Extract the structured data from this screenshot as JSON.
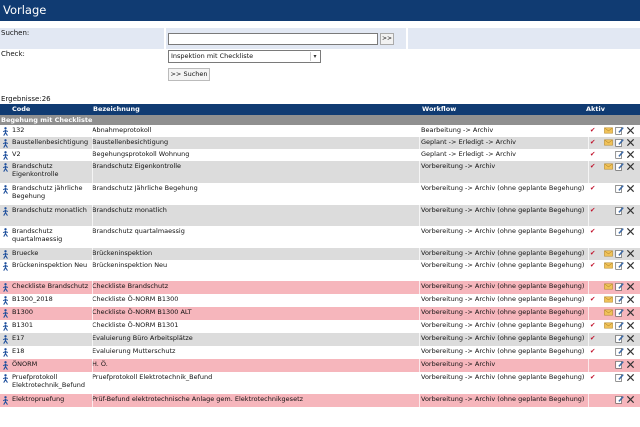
{
  "title": "Vorlage",
  "search": {
    "label": "Suchen:",
    "value": "",
    "go_label": ">>"
  },
  "check": {
    "label": "Check:",
    "selected": "Inspektion mit Checkliste",
    "chevron": "▾"
  },
  "submit_label": ">> Suchen",
  "results_count": "Ergebnisse:26",
  "columns": {
    "code": "Code",
    "bezeichnung": "Bezeichnung",
    "workflow": "Workflow",
    "aktiv": "Aktiv"
  },
  "group": "Begehung mit Checkliste",
  "colors": {
    "header": "#103b72",
    "panel": "#e2e8f3",
    "group": "#909090",
    "row_alt": "#dcdcdc",
    "row_red": "#f6b6bc",
    "check": "#c0102a",
    "mail": "#e0b34a"
  },
  "rows": [
    {
      "code": "132",
      "bezeichnung": "Abnahmeprotokoll",
      "workflow": "Bearbeitung -> Archiv",
      "aktiv": "✔",
      "mail": true,
      "style": "odd",
      "h": 12,
      "icon": "person-walking-icon"
    },
    {
      "code": "Baustellenbesichtigung",
      "bezeichnung": "Baustellenbesichtigung",
      "workflow": "Geplant -> Erledigt -> Archiv",
      "aktiv": "✔",
      "mail": true,
      "style": "even",
      "h": 12,
      "icon": "person-walking-icon"
    },
    {
      "code": "V2",
      "bezeichnung": "Begehungsprotokoll Wohnung",
      "workflow": "Geplant -> Erledigt -> Archiv",
      "aktiv": "✔",
      "mail": false,
      "style": "odd",
      "h": 12,
      "icon": "person-walking-icon"
    },
    {
      "code": "Brandschutz Eigenkontrolle",
      "bezeichnung": "Brandschutz Eigenkontrolle",
      "workflow": "Vorbereitung -> Archiv",
      "aktiv": "✔",
      "mail": true,
      "style": "even",
      "h": 22,
      "icon": "person-walking-icon"
    },
    {
      "code": "Brandschutz jährliche Begehung",
      "bezeichnung": "Brandschutz Jährliche Begehung",
      "workflow": "Vorbereitung -> Archiv (ohne geplante Begehung)",
      "aktiv": "✔",
      "mail": false,
      "style": "odd",
      "h": 22,
      "icon": "person-walking-icon"
    },
    {
      "code": "Brandschutz monatlich",
      "bezeichnung": "Brandschutz monatlich",
      "workflow": "Vorbereitung -> Archiv (ohne geplante Begehung)",
      "aktiv": "✔",
      "mail": false,
      "style": "even",
      "h": 21,
      "icon": "person-walking-icon"
    },
    {
      "code": "Brandschutz quartalmaessig",
      "bezeichnung": "Brandschutz quartalmaessig",
      "workflow": "Vorbereitung -> Archiv (ohne geplante Begehung)",
      "aktiv": "✔",
      "mail": false,
      "style": "odd",
      "h": 22,
      "icon": "person-walking-icon"
    },
    {
      "code": "Bruecke",
      "bezeichnung": "Brückeninspektion",
      "workflow": "Vorbereitung -> Archiv (ohne geplante Begehung)",
      "aktiv": "✔",
      "mail": true,
      "style": "even",
      "h": 12,
      "icon": "person-walking-icon"
    },
    {
      "code": "Brückeninspektion Neu",
      "bezeichnung": "Brückeninspektion Neu",
      "workflow": "Vorbereitung -> Archiv (ohne geplante Begehung)",
      "aktiv": "✔",
      "mail": true,
      "style": "odd",
      "h": 21,
      "icon": "person-walking-icon"
    },
    {
      "code": "Checkliste Brandschutz",
      "bezeichnung": "Checkliste Brandschutz",
      "workflow": "Vorbereitung -> Archiv (ohne geplante Begehung)",
      "aktiv": "",
      "mail": true,
      "style": "red",
      "h": 13,
      "icon": "person-walking-icon"
    },
    {
      "code": "B1300_2018",
      "bezeichnung": "Checkliste Ö-NORM B1300",
      "workflow": "Vorbereitung -> Archiv (ohne geplante Begehung)",
      "aktiv": "✔",
      "mail": true,
      "style": "odd",
      "h": 13,
      "icon": "person-walking-icon"
    },
    {
      "code": "B1300",
      "bezeichnung": "Checkliste Ö-NORM B1300 ALT",
      "workflow": "Vorbereitung -> Archiv (ohne geplante Begehung)",
      "aktiv": "",
      "mail": true,
      "style": "red",
      "h": 13,
      "icon": "person-walking-icon"
    },
    {
      "code": "B1301",
      "bezeichnung": "Checkliste Ö-NORM B1301",
      "workflow": "Vorbereitung -> Archiv (ohne geplante Begehung)",
      "aktiv": "✔",
      "mail": true,
      "style": "odd",
      "h": 13,
      "icon": "person-walking-icon"
    },
    {
      "code": "E17",
      "bezeichnung": "Evaluierung Büro Arbeitsplätze",
      "workflow": "Vorbereitung -> Archiv (ohne geplante Begehung)",
      "aktiv": "✔",
      "mail": false,
      "style": "even",
      "h": 13,
      "icon": "person-walking-icon"
    },
    {
      "code": "E18",
      "bezeichnung": "Evaluierung Mutterschutz",
      "workflow": "Vorbereitung -> Archiv (ohne geplante Begehung)",
      "aktiv": "✔",
      "mail": false,
      "style": "odd",
      "h": 13,
      "icon": "person-walking-icon"
    },
    {
      "code": "ÖNORM",
      "bezeichnung": "H. Ö.",
      "workflow": "Vorbereitung -> Archiv",
      "aktiv": "",
      "mail": false,
      "style": "red",
      "h": 13,
      "icon": "person-walking-icon"
    },
    {
      "code": "Pruefprotokoll Elektrotechnik_Befund",
      "bezeichnung": "Pruefprotokoll Elektrotechnik_Befund",
      "workflow": "Vorbereitung -> Archiv (ohne geplante Begehung)",
      "aktiv": "✔",
      "mail": false,
      "style": "odd",
      "h": 22,
      "icon": "person-walking-icon"
    },
    {
      "code": "Elektropruefung",
      "bezeichnung": "Prüf-Befund elektrotechnische Anlage gem. Elektrotechnikgesetz",
      "workflow": "Vorbereitung -> Archiv (ohne geplante Begehung)",
      "aktiv": "",
      "mail": false,
      "style": "red",
      "h": 13,
      "icon": "person-walking-icon"
    }
  ]
}
